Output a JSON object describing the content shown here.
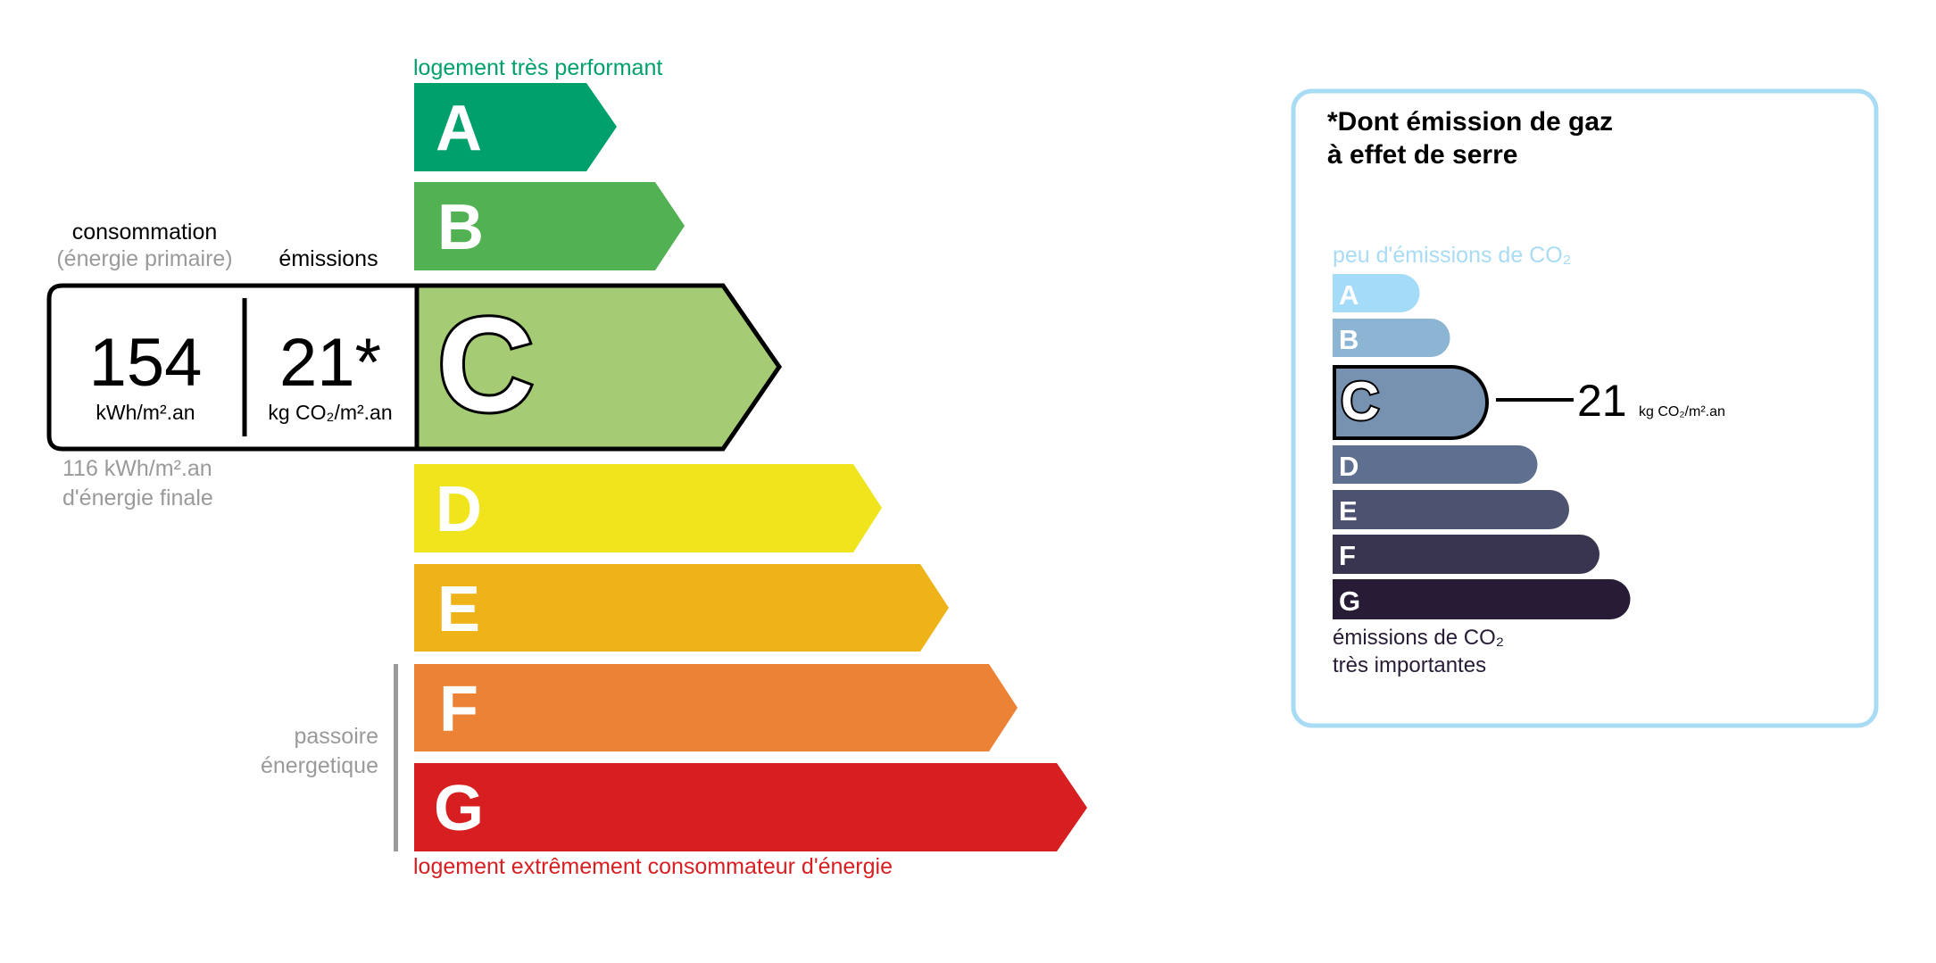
{
  "energy": {
    "top_label": "logement très performant",
    "bottom_label": "logement extrêmement consommateur d'énergie",
    "passoire_line1": "passoire",
    "passoire_line2": "énergetique",
    "classes": [
      {
        "letter": "A",
        "color": "#00a06d"
      },
      {
        "letter": "B",
        "color": "#52b153"
      },
      {
        "letter": "C",
        "color": "#a5cc74"
      },
      {
        "letter": "D",
        "color": "#f0e51d"
      },
      {
        "letter": "E",
        "color": "#efb31a"
      },
      {
        "letter": "F",
        "color": "#eb8235"
      },
      {
        "letter": "G",
        "color": "#d71e21"
      }
    ],
    "current_class": "C",
    "consumption_header": "consommation",
    "consumption_sub": "(énergie primaire)",
    "emissions_header": "émissions",
    "consumption_value": "154",
    "consumption_unit": "kWh/m².an",
    "emissions_value": "21*",
    "emissions_unit": "kg CO₂/m².an",
    "final_energy_line1": "116 kWh/m².an",
    "final_energy_line2": "d'énergie finale"
  },
  "ges": {
    "title_line1": "*Dont émission de gaz",
    "title_line2": "à effet de serre",
    "top_label": "peu d'émissions de CO₂",
    "bottom_line1": "émissions de CO₂",
    "bottom_line2": "très importantes",
    "border_color": "#a8dcf5",
    "classes": [
      {
        "letter": "A",
        "color": "#a4dbf8"
      },
      {
        "letter": "B",
        "color": "#8cb4d3"
      },
      {
        "letter": "C",
        "color": "#7792b1"
      },
      {
        "letter": "D",
        "color": "#5f6f8f"
      },
      {
        "letter": "E",
        "color": "#4d5271"
      },
      {
        "letter": "F",
        "color": "#393551"
      },
      {
        "letter": "G",
        "color": "#281b35"
      }
    ],
    "current_class": "C",
    "value": "21",
    "unit": "kg CO₂/m².an"
  }
}
